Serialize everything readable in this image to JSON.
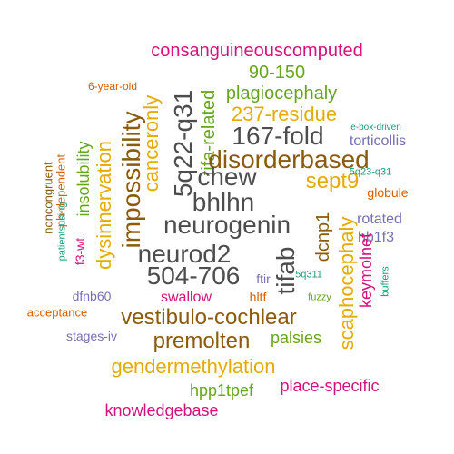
{
  "words": [
    {
      "text": "consanguineouscomputed",
      "color": "#d4127d"
    },
    {
      "text": "90-150",
      "color": "#66a61e"
    },
    {
      "text": "6-year-old",
      "color": "#d95f02"
    },
    {
      "text": "plagiocephaly",
      "color": "#66a61e"
    },
    {
      "text": "5q22-q31",
      "color": "#4d4d4d"
    },
    {
      "text": "tifa-related",
      "color": "#66a61e"
    },
    {
      "text": "237-residue",
      "color": "#e6ab02"
    },
    {
      "text": "canceronly",
      "color": "#e6ab02"
    },
    {
      "text": "impossibility",
      "color": "#8b5a0a"
    },
    {
      "text": "167-fold",
      "color": "#4d4d4d"
    },
    {
      "text": "e-box-driven",
      "color": "#1b9e77"
    },
    {
      "text": "torticollis",
      "color": "#7570b3"
    },
    {
      "text": "disorderbased",
      "color": "#8b5a0a"
    },
    {
      "text": "chew",
      "color": "#4d4d4d"
    },
    {
      "text": "insolubility",
      "color": "#66a61e"
    },
    {
      "text": "dysinnervation",
      "color": "#e6ab02"
    },
    {
      "text": "ph-dependent",
      "color": "#d95f02"
    },
    {
      "text": "noncongruent",
      "color": "#8b5a0a"
    },
    {
      "text": "sept9",
      "color": "#e6ab02"
    },
    {
      "text": "5q23-q31",
      "color": "#1b9e77"
    },
    {
      "text": "globule",
      "color": "#d95f02"
    },
    {
      "text": "bhlhn",
      "color": "#4d4d4d"
    },
    {
      "text": "patientsusing",
      "color": "#1b9e77"
    },
    {
      "text": "neurogenin",
      "color": "#4d4d4d"
    },
    {
      "text": "dcnp1",
      "color": "#8b5a0a"
    },
    {
      "text": "rotated",
      "color": "#7570b3"
    },
    {
      "text": "hb1f3",
      "color": "#7570b3"
    },
    {
      "text": "f3-wt",
      "color": "#d4127d"
    },
    {
      "text": "neurod2",
      "color": "#4d4d4d"
    },
    {
      "text": "scaphocephaly",
      "color": "#e6ab02"
    },
    {
      "text": "keymolnet",
      "color": "#d4127d"
    },
    {
      "text": "504-706",
      "color": "#4d4d4d"
    },
    {
      "text": "tifab",
      "color": "#4d4d4d"
    },
    {
      "text": "ftir",
      "color": "#7570b3"
    },
    {
      "text": "5q311",
      "color": "#1b9e77"
    },
    {
      "text": "buffers",
      "color": "#1b9e77"
    },
    {
      "text": "dfnb60",
      "color": "#7570b3"
    },
    {
      "text": "swallow",
      "color": "#d4127d"
    },
    {
      "text": "hltf",
      "color": "#d95f02"
    },
    {
      "text": "fuzzy",
      "color": "#66a61e"
    },
    {
      "text": "acceptance",
      "color": "#d95f02"
    },
    {
      "text": "vestibulo-cochlear",
      "color": "#8b5a0a"
    },
    {
      "text": "stages-iv",
      "color": "#7570b3"
    },
    {
      "text": "premolten",
      "color": "#8b5a0a"
    },
    {
      "text": "palsies",
      "color": "#66a61e"
    },
    {
      "text": "gendermethylation",
      "color": "#e6ab02"
    },
    {
      "text": "hpp1tpef",
      "color": "#66a61e"
    },
    {
      "text": "place-specific",
      "color": "#d4127d"
    },
    {
      "text": "knowledgebase",
      "color": "#d4127d"
    }
  ]
}
